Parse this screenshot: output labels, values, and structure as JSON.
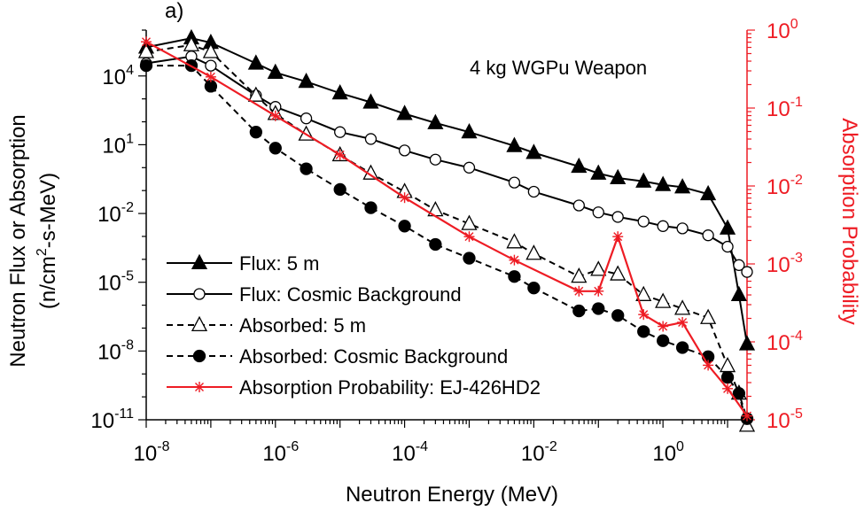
{
  "chart_data": {
    "type": "line",
    "panel_label": "a)",
    "annotation": "4 kg WGPu Weapon",
    "xlabel": "Neutron Energy (MeV)",
    "ylabel_line1": "Neutron Flux or Absorption",
    "ylabel_line2_pre": "(n/cm",
    "ylabel_line2_sup": "2",
    "ylabel_line2_post": "-s-MeV)",
    "y2label": "Absorption Probability",
    "x_scale": "log",
    "y_scale": "log",
    "y2_scale": "log",
    "xlim": [
      1e-08,
      20
    ],
    "ylim": [
      1e-11,
      1000000
    ],
    "y2lim": [
      1e-05,
      1
    ],
    "x_ticks": [
      {
        "value": 1e-08,
        "base": "10",
        "exp": "-8"
      },
      {
        "value": 1e-06,
        "base": "10",
        "exp": "-6"
      },
      {
        "value": 0.0001,
        "base": "10",
        "exp": "-4"
      },
      {
        "value": 0.01,
        "base": "10",
        "exp": "-2"
      },
      {
        "value": 1,
        "base": "10",
        "exp": "0"
      }
    ],
    "y_ticks": [
      {
        "value": 10000,
        "base": "10",
        "exp": "4"
      },
      {
        "value": 10,
        "base": "10",
        "exp": "1"
      },
      {
        "value": 0.01,
        "base": "10",
        "exp": "-2"
      },
      {
        "value": 1e-05,
        "base": "10",
        "exp": "-5"
      },
      {
        "value": 1e-08,
        "base": "10",
        "exp": "-8"
      },
      {
        "value": 1e-11,
        "base": "10",
        "exp": "-11"
      }
    ],
    "y2_ticks": [
      {
        "value": 1,
        "base": "10",
        "exp": "0"
      },
      {
        "value": 0.1,
        "base": "10",
        "exp": "-1"
      },
      {
        "value": 0.01,
        "base": "10",
        "exp": "-2"
      },
      {
        "value": 0.001,
        "base": "10",
        "exp": "-3"
      },
      {
        "value": 0.0001,
        "base": "10",
        "exp": "-4"
      },
      {
        "value": 1e-05,
        "base": "10",
        "exp": "-5"
      }
    ],
    "legend_position": "bottom-left",
    "series": [
      {
        "name": "Flux: 5 m",
        "axis": "left",
        "color": "#000000",
        "dash": "solid",
        "marker": "triangle-filled",
        "x": [
          1e-08,
          5e-08,
          1e-07,
          5e-07,
          1e-06,
          3e-06,
          1e-05,
          3e-05,
          0.0001,
          0.0003,
          0.001,
          0.005,
          0.01,
          0.05,
          0.1,
          0.2,
          0.5,
          1,
          2,
          5,
          10,
          15,
          20
        ],
        "y": [
          178000,
          447000,
          282000,
          35500,
          14100,
          5620,
          1780,
          709,
          224,
          89.1,
          35.5,
          8.91,
          4.47,
          1.12,
          0.562,
          0.354,
          0.251,
          0.178,
          0.141,
          0.0708,
          0.00224,
          2.82e-06,
          2e-08
        ]
      },
      {
        "name": "Flux: Cosmic Background",
        "axis": "left",
        "color": "#000000",
        "dash": "solid",
        "marker": "circle-open",
        "x": [
          1e-08,
          5e-08,
          1e-07,
          5e-07,
          1e-06,
          3e-06,
          1e-05,
          3e-05,
          0.0001,
          0.0003,
          0.001,
          0.005,
          0.01,
          0.05,
          0.1,
          0.2,
          0.5,
          1,
          2,
          5,
          10,
          15,
          20
        ],
        "y": [
          35500,
          70800,
          28200,
          1410,
          447,
          141,
          35.5,
          17.8,
          5.62,
          2.24,
          1,
          0.224,
          0.0891,
          0.0224,
          0.0112,
          0.00708,
          0.00447,
          0.00282,
          0.00224,
          0.00112,
          0.000355,
          5.62e-05,
          2.82e-05
        ]
      },
      {
        "name": "Absorbed: 5 m",
        "axis": "left",
        "color": "#000000",
        "dash": "dashed",
        "marker": "triangle-open",
        "x": [
          1e-08,
          5e-08,
          1e-07,
          5e-07,
          1e-06,
          3e-06,
          1e-05,
          3e-05,
          0.0001,
          0.0003,
          0.001,
          0.005,
          0.01,
          0.05,
          0.1,
          0.2,
          0.5,
          1,
          2,
          5,
          10,
          15,
          20
        ],
        "y": [
          112000,
          224000,
          112000,
          1410,
          224,
          28.2,
          3.55,
          0.562,
          0.0891,
          0.0141,
          0.00355,
          0.000562,
          0.000178,
          1.78e-05,
          3.55e-05,
          2.24e-05,
          2.82e-06,
          1.41e-06,
          7.08e-07,
          2.82e-07,
          2.24e-09,
          1.41e-10,
          5.62e-12
        ]
      },
      {
        "name": "Absorbed: Cosmic Background",
        "axis": "left",
        "color": "#000000",
        "dash": "dashed",
        "marker": "circle-filled",
        "x": [
          1e-08,
          5e-08,
          1e-07,
          5e-07,
          1e-06,
          3e-06,
          1e-05,
          3e-05,
          0.0001,
          0.0003,
          0.001,
          0.005,
          0.01,
          0.05,
          0.1,
          0.2,
          0.5,
          1,
          2,
          5,
          10,
          15,
          20
        ],
        "y": [
          28200,
          28200,
          3550,
          35.5,
          7.08,
          0.891,
          0.112,
          0.0178,
          0.00282,
          0.000447,
          0.000112,
          1.78e-05,
          5.62e-06,
          5.62e-07,
          7.08e-07,
          3.55e-07,
          7.08e-08,
          2.82e-08,
          1.41e-08,
          5.62e-09,
          7.08e-10,
          1.41e-10,
          1.12e-11
        ]
      },
      {
        "name": "Absorption Probability: EJ-426HD2",
        "axis": "right",
        "color": "#ee1c24",
        "dash": "solid",
        "marker": "asterisk",
        "x": [
          1e-08,
          1e-07,
          1e-06,
          1e-05,
          0.0001,
          0.001,
          0.005,
          0.05,
          0.1,
          0.2,
          0.5,
          1,
          2,
          5,
          10,
          20
        ],
        "y": [
          0.708,
          0.251,
          0.0794,
          0.0251,
          0.00708,
          0.00224,
          0.00112,
          0.000447,
          0.000447,
          0.00224,
          0.000224,
          0.000158,
          0.000178,
          5.01e-05,
          2.51e-05,
          1.12e-05
        ]
      }
    ]
  }
}
